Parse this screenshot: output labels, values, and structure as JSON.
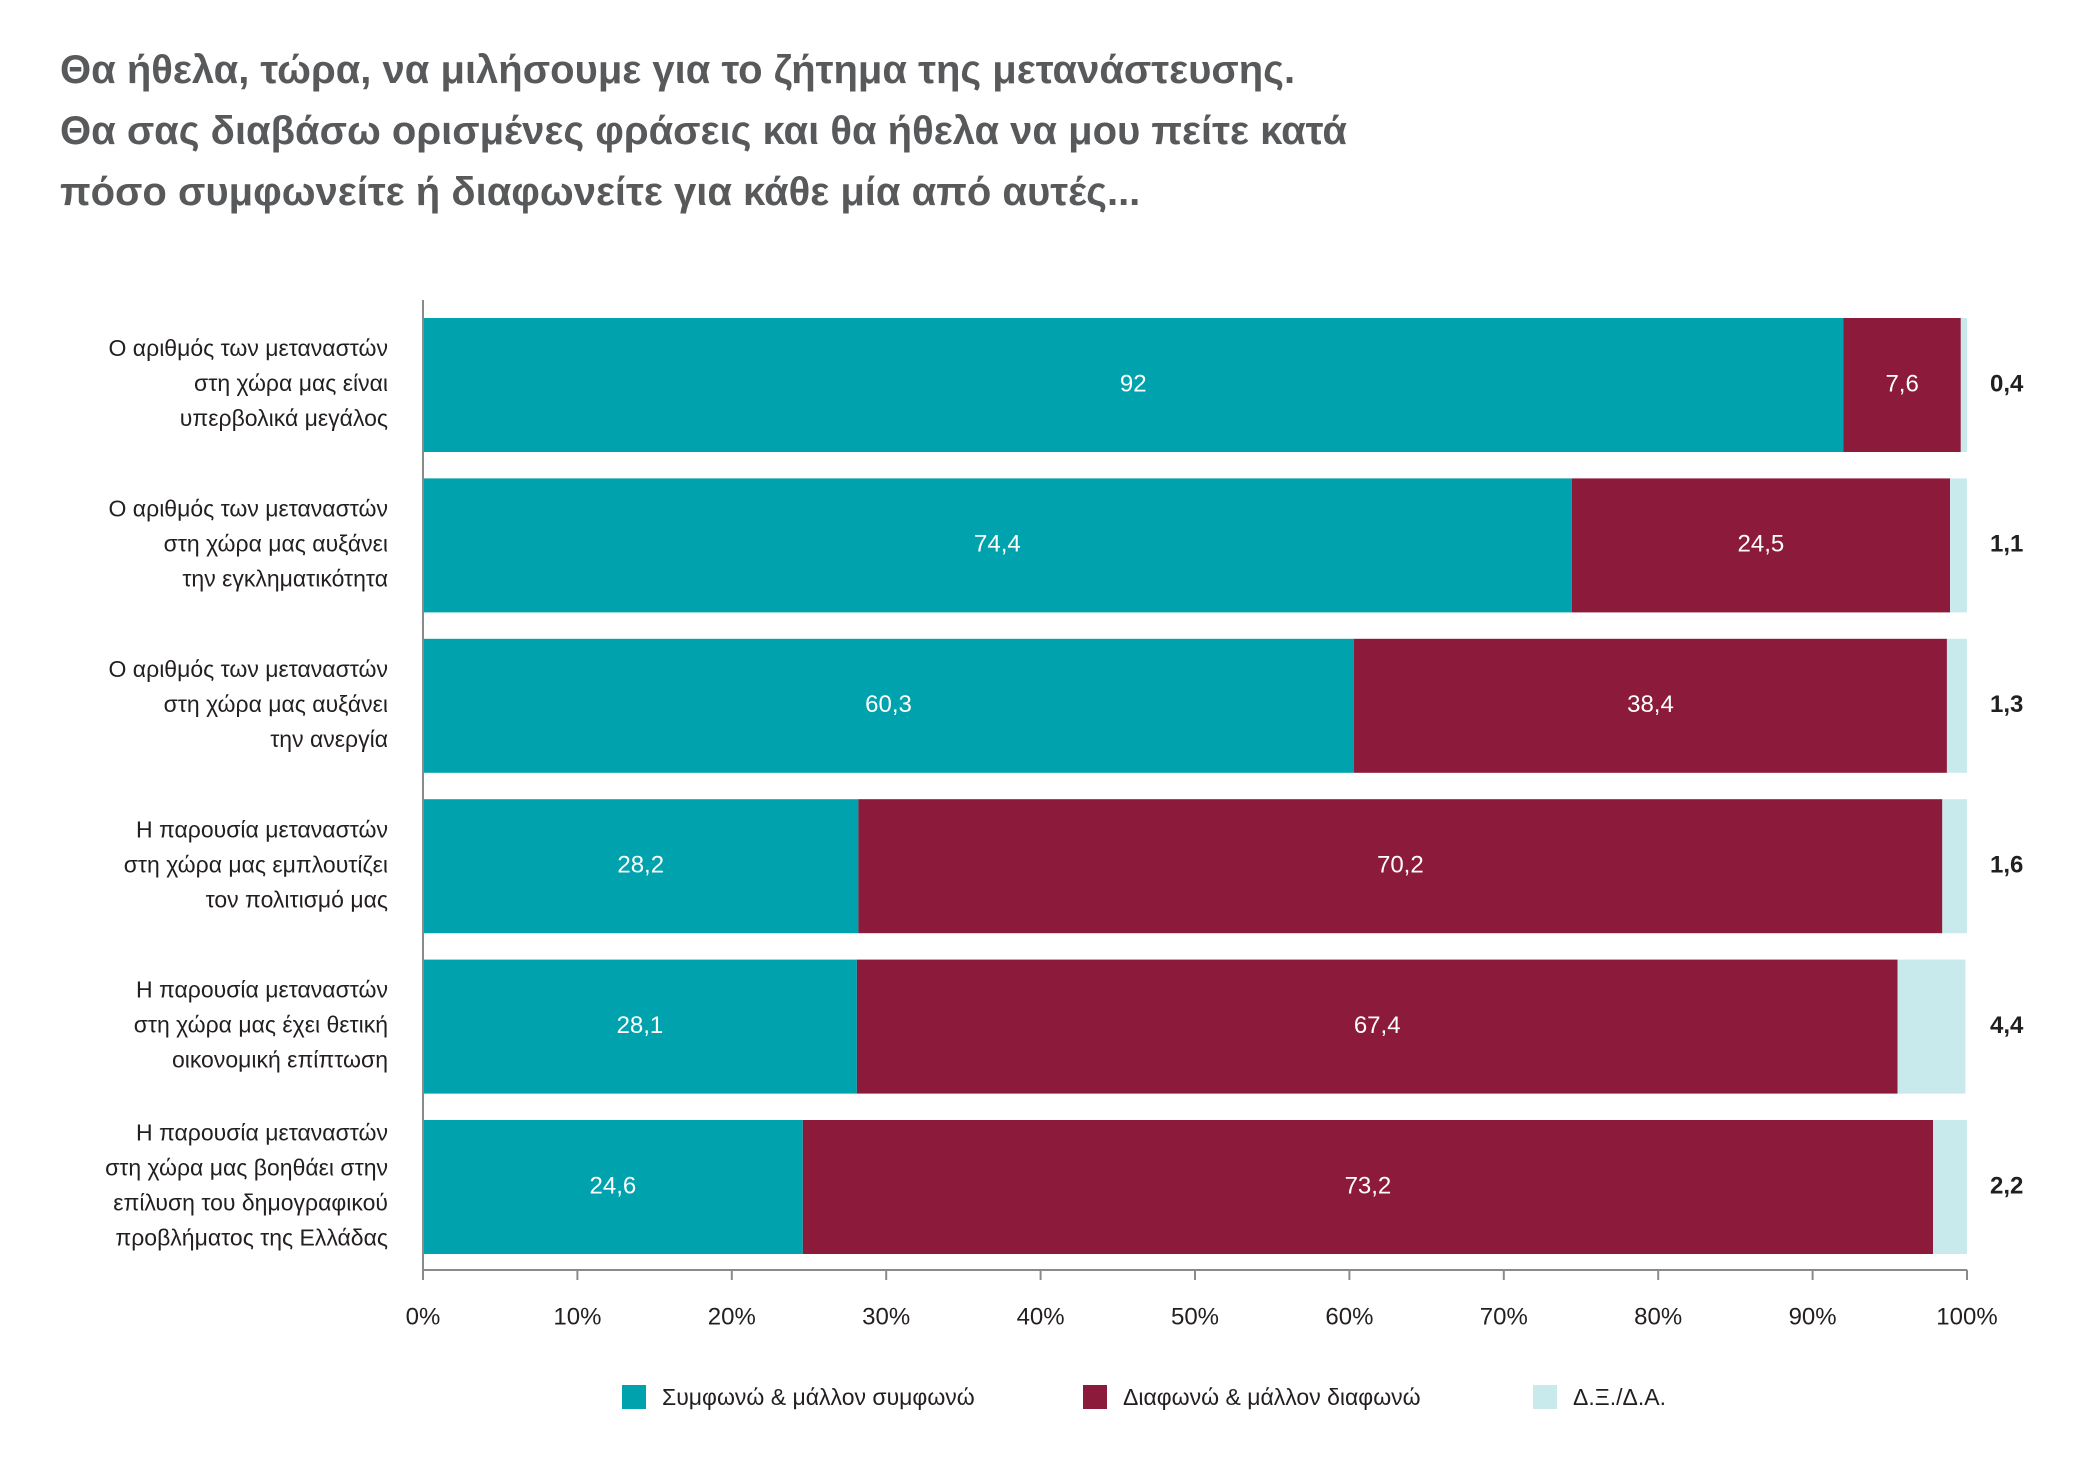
{
  "title_lines": [
    "Θα ήθελα, τώρα, να μιλήσουμε για το ζήτημα της μετανάστευσης.",
    "Θα σας διαβάσω ορισμένες φράσεις και θα ήθελα να μου πείτε κατά",
    "πόσο συμφωνείτε ή διαφωνείτε για κάθε μία από αυτές..."
  ],
  "chart_data": {
    "type": "bar",
    "horizontal": true,
    "stacked": true,
    "categories": [
      [
        "Ο αριθμός των μεταναστών",
        "στη χώρα μας είναι",
        "υπερβολικά μεγάλος"
      ],
      [
        "Ο αριθμός των μεταναστών",
        "στη χώρα μας αυξάνει",
        "την εγκληματικότητα"
      ],
      [
        "Ο αριθμός των μεταναστών",
        "στη χώρα μας αυξάνει",
        "την ανεργία"
      ],
      [
        "Η παρουσία μεταναστών",
        "στη χώρα μας εμπλουτίζει",
        "τον πολιτισμό μας"
      ],
      [
        "Η παρουσία μεταναστών",
        "στη χώρα μας έχει θετική",
        "οικονομική επίπτωση"
      ],
      [
        "Η παρουσία μεταναστών",
        "στη χώρα μας βοηθάει στην",
        "επίλυση του δημογραφικού",
        "προβλήματος της Ελλάδας"
      ]
    ],
    "series": [
      {
        "name": "Συμφωνώ & μάλλον συμφωνώ",
        "color": "#00a3ad",
        "values": [
          92,
          74.4,
          60.3,
          28.2,
          28.1,
          24.6
        ]
      },
      {
        "name": "Διαφωνώ & μάλλον διαφωνώ",
        "color": "#8c1a3a",
        "values": [
          7.6,
          24.5,
          38.4,
          70.2,
          67.4,
          73.2
        ]
      },
      {
        "name": "Δ.Ξ./Δ.Α.",
        "color": "#c8eaec",
        "values": [
          0.4,
          1.1,
          1.3,
          1.6,
          4.4,
          2.2
        ]
      }
    ],
    "xlim": [
      0,
      100
    ],
    "xtick_labels": [
      "0%",
      "10%",
      "20%",
      "30%",
      "40%",
      "50%",
      "60%",
      "70%",
      "80%",
      "90%",
      "100%"
    ],
    "grid": false,
    "legend": "bottom"
  }
}
